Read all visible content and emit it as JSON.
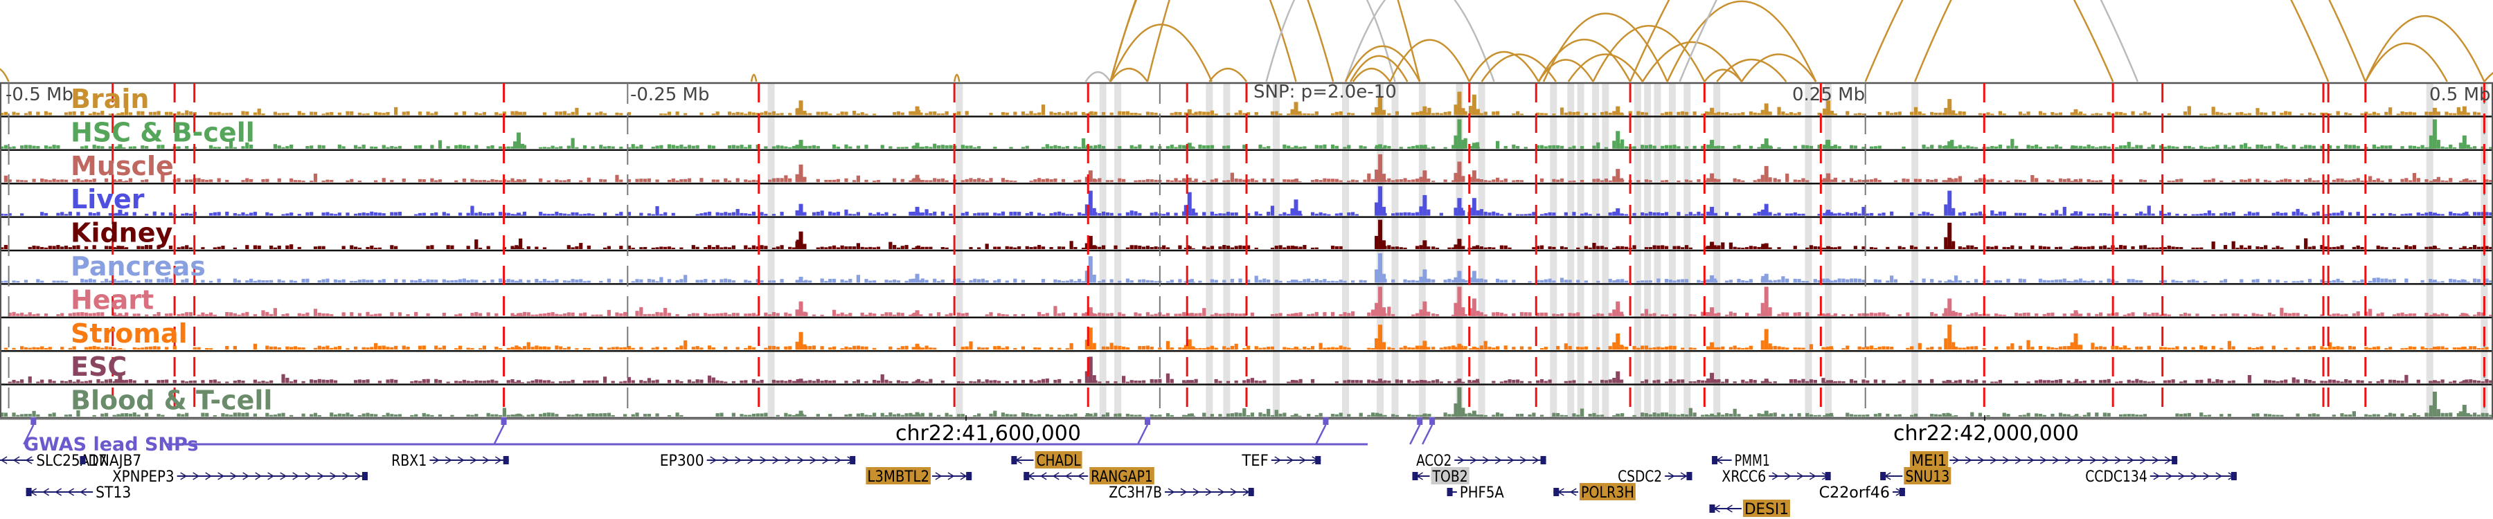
{
  "chart_data": {
    "type": "genome-browser",
    "title": "",
    "region": {
      "chrom": "chr22",
      "start_mb": 41.36,
      "end_mb": 42.36,
      "center_mb": 41.86
    },
    "scale_labels": [
      {
        "text": "-0.5 Mb",
        "offset_mb": -0.5
      },
      {
        "text": "-0.25 Mb",
        "offset_mb": -0.25
      },
      {
        "text": "0.25 Mb",
        "offset_mb": 0.25
      },
      {
        "text": "0.5 Mb",
        "offset_mb": 0.5
      }
    ],
    "snp_annotation": {
      "text": "SNP: p=2.0e-10",
      "offset_mb": -0.035
    },
    "coordinate_labels": [
      {
        "text": "chr22:41,600,000",
        "position_mb": 41.6
      },
      {
        "text": "chr22:42,000,000",
        "position_mb": 42.0
      }
    ],
    "tracks": [
      {
        "name": "Brain",
        "color": "#c8902e"
      },
      {
        "name": "HSC & B-cell",
        "color": "#55a55a"
      },
      {
        "name": "Muscle",
        "color": "#c06860"
      },
      {
        "name": "Liver",
        "color": "#5050e0"
      },
      {
        "name": "Kidney",
        "color": "#6a0000"
      },
      {
        "name": "Pancreas",
        "color": "#88a0e0"
      },
      {
        "name": "Heart",
        "color": "#d87080"
      },
      {
        "name": "Stromal",
        "color": "#f97a10"
      },
      {
        "name": "ESC",
        "color": "#8a4660"
      },
      {
        "name": "Blood & T-cell",
        "color": "#6a8c6a"
      }
    ],
    "peaks_offset_mb": [
      {
        "at": -0.455,
        "heights": [
          0.05,
          0.15,
          0.1,
          0.2,
          0.1,
          0.05,
          0.1,
          0.05,
          0.3,
          0.05
        ]
      },
      {
        "at": -0.294,
        "heights": [
          0.1,
          0.55,
          0.1,
          0.1,
          0.1,
          0.05,
          0.1,
          0.1,
          0.1,
          0.1
        ]
      },
      {
        "at": -0.18,
        "heights": [
          0.5,
          0.3,
          0.6,
          0.4,
          0.6,
          0.2,
          0.5,
          0.6,
          0.15,
          0.2
        ]
      },
      {
        "at": -0.133,
        "heights": [
          0.3,
          0.2,
          0.25,
          0.3,
          0.1,
          0.3,
          0.2,
          0.2,
          0.1,
          0.15
        ]
      },
      {
        "at": -0.063,
        "heights": [
          0.1,
          0.1,
          0.4,
          0.85,
          0.45,
          0.9,
          0.3,
          0.75,
          0.9,
          0.1
        ]
      },
      {
        "at": -0.023,
        "heights": [
          0.2,
          0.2,
          0.15,
          0.8,
          0.1,
          0.1,
          0.1,
          0.35,
          0.1,
          0.1
        ]
      },
      {
        "at": 0.02,
        "heights": [
          0.45,
          0.1,
          0.1,
          0.55,
          0.1,
          0.1,
          0.1,
          0.1,
          0.1,
          0.1
        ]
      },
      {
        "at": 0.054,
        "heights": [
          0.6,
          0.15,
          0.95,
          1.0,
          1.0,
          1.0,
          1.0,
          0.85,
          0.15,
          0.1
        ]
      },
      {
        "at": 0.072,
        "heights": [
          0.3,
          0.1,
          0.4,
          0.7,
          0.3,
          0.45,
          0.5,
          0.3,
          0.1,
          0.1
        ]
      },
      {
        "at": 0.086,
        "heights": [
          0.8,
          1.0,
          0.7,
          0.6,
          0.35,
          0.4,
          1.0,
          0.2,
          0.15,
          1.0
        ]
      },
      {
        "at": 0.092,
        "heights": [
          0.7,
          0.2,
          0.4,
          0.6,
          0.1,
          0.4,
          0.6,
          0.1,
          0.1,
          0.2
        ]
      },
      {
        "at": 0.15,
        "heights": [
          0.3,
          0.6,
          0.45,
          0.25,
          0.1,
          0.1,
          0.5,
          0.55,
          0.4,
          0.1
        ]
      },
      {
        "at": 0.188,
        "heights": [
          0.25,
          0.3,
          0.3,
          0.3,
          0.25,
          0.25,
          0.3,
          0.25,
          0.35,
          0.1
        ]
      },
      {
        "at": 0.21,
        "heights": [
          0.4,
          0.35,
          0.55,
          0.4,
          0.2,
          0.3,
          1.0,
          0.7,
          0.15,
          0.2
        ]
      },
      {
        "at": 0.235,
        "heights": [
          0.5,
          0.3,
          0.3,
          0.2,
          0.1,
          0.1,
          0.1,
          0.1,
          0.1,
          0.1
        ]
      },
      {
        "at": 0.284,
        "heights": [
          0.55,
          0.25,
          0.15,
          0.85,
          0.9,
          0.1,
          0.6,
          0.85,
          0.1,
          0.1
        ]
      },
      {
        "at": 0.335,
        "heights": [
          0.2,
          0.1,
          0.1,
          0.15,
          0.1,
          0.1,
          0.2,
          0.55,
          0.05,
          0.05
        ]
      },
      {
        "at": 0.48,
        "heights": [
          0.25,
          1.0,
          0.1,
          0.1,
          0.1,
          0.1,
          0.1,
          0.1,
          0.1,
          0.85
        ]
      },
      {
        "at": 0.492,
        "heights": [
          0.3,
          0.45,
          0.1,
          0.1,
          0.1,
          0.1,
          0.1,
          0.1,
          0.1,
          0.4
        ]
      }
    ],
    "highlighted_snps_offset_mb": [
      -0.458,
      -0.433,
      -0.425,
      -0.3,
      -0.197,
      -0.118,
      -0.064,
      -0.024,
      0.0,
      0.09,
      0.117,
      0.155,
      0.185,
      0.232,
      0.298,
      0.35,
      0.37,
      0.435,
      0.437,
      0.452,
      0.5
    ],
    "highlight_bands_offset_mb": [
      -0.192,
      -0.116,
      -0.058,
      -0.052,
      -0.015,
      -0.008,
      0.012,
      0.04,
      0.054,
      0.06,
      0.071,
      0.086,
      0.095,
      0.124,
      0.131,
      0.135,
      0.141,
      0.145,
      0.158,
      0.162,
      0.166,
      0.172,
      0.178,
      0.19,
      0.227,
      0.235,
      0.27,
      0.478,
      0.5
    ],
    "arcs": [
      {
        "from": -0.5,
        "to": -0.51,
        "color": "#c8902e",
        "height": 0.5
      },
      {
        "from": -0.2,
        "to": -0.198,
        "color": "#c8902e",
        "height": 0.02
      },
      {
        "from": -0.118,
        "to": -0.116,
        "color": "#c8902e",
        "height": 0.02
      },
      {
        "from": -0.065,
        "to": -0.055,
        "color": "#bbbbbb",
        "height": 0.2
      },
      {
        "from": -0.055,
        "to": -0.04,
        "color": "#c8902e",
        "height": 0.3
      },
      {
        "from": -0.055,
        "to": -0.014,
        "color": "#c8902e",
        "height": 0.9
      },
      {
        "from": -0.055,
        "to": 0.02,
        "color": "#c8902e",
        "height": 1.6
      },
      {
        "from": -0.055,
        "to": 0.035,
        "color": "#c8902e",
        "height": 1.6
      },
      {
        "from": -0.04,
        "to": 0.07,
        "color": "#c8902e",
        "height": 1.8
      },
      {
        "from": -0.015,
        "to": 0.0,
        "color": "#c8902e",
        "height": 0.3
      },
      {
        "from": 0.008,
        "to": 0.06,
        "color": "#bbbbbb",
        "height": 1.6
      },
      {
        "from": 0.04,
        "to": 0.1,
        "color": "#bbbbbb",
        "height": 1.2
      },
      {
        "from": 0.04,
        "to": 0.07,
        "color": "#c8902e",
        "height": 0.7
      },
      {
        "from": 0.042,
        "to": 0.065,
        "color": "#c8902e",
        "height": 0.6
      },
      {
        "from": 0.043,
        "to": 0.058,
        "color": "#c8902e",
        "height": 0.3
      },
      {
        "from": 0.058,
        "to": 0.09,
        "color": "#c8902e",
        "height": 0.8
      },
      {
        "from": 0.09,
        "to": 0.118,
        "color": "#c8902e",
        "height": 0.6
      },
      {
        "from": 0.095,
        "to": 0.125,
        "color": "#c8902e",
        "height": 0.5
      },
      {
        "from": 0.118,
        "to": 0.14,
        "color": "#c8902e",
        "height": 0.5
      },
      {
        "from": 0.118,
        "to": 0.155,
        "color": "#c8902e",
        "height": 0.7
      },
      {
        "from": 0.12,
        "to": 0.17,
        "color": "#c8902e",
        "height": 0.9
      },
      {
        "from": 0.13,
        "to": 0.16,
        "color": "#c8902e",
        "height": 0.5
      },
      {
        "from": 0.14,
        "to": 0.185,
        "color": "#c8902e",
        "height": 0.8
      },
      {
        "from": 0.16,
        "to": 0.2,
        "color": "#c8902e",
        "height": 0.6
      },
      {
        "from": 0.17,
        "to": 0.23,
        "color": "#c8902e",
        "height": 0.9
      },
      {
        "from": 0.185,
        "to": 0.2,
        "color": "#c8902e",
        "height": 0.25
      },
      {
        "from": 0.19,
        "to": 0.218,
        "color": "#c8902e",
        "height": 0.4
      },
      {
        "from": 0.2,
        "to": 0.23,
        "color": "#c8902e",
        "height": 0.5
      },
      {
        "from": 0.155,
        "to": 0.35,
        "color": "#c8902e",
        "height": 2.5
      },
      {
        "from": 0.175,
        "to": 0.36,
        "color": "#bbbbbb",
        "height": 2.5
      },
      {
        "from": 0.25,
        "to": 0.437,
        "color": "#c8902e",
        "height": 2.5
      },
      {
        "from": 0.27,
        "to": 0.452,
        "color": "#c8902e",
        "height": 2.5
      },
      {
        "from": 0.452,
        "to": 0.5,
        "color": "#c8902e",
        "height": 0.9
      },
      {
        "from": 0.452,
        "to": 0.485,
        "color": "#c8902e",
        "height": 0.7
      },
      {
        "from": 0.5,
        "to": 0.52,
        "color": "#c8902e",
        "height": 0.3
      }
    ],
    "gwas_lead_snps": {
      "label": "GWAS lead SNPs",
      "color": "#6a5acd",
      "positions_offset_mb": [
        -0.49,
        -0.3,
        -0.04,
        0.032,
        0.07,
        0.075
      ]
    },
    "genes": [
      {
        "name": "SLC25A17",
        "start": -0.52,
        "end": -0.49,
        "strand": "-",
        "row": 0,
        "label_side": "right",
        "highlight": null
      },
      {
        "name": "DNAJB7",
        "start": -0.47,
        "end": -0.469,
        "strand": "+",
        "row": 0,
        "label_side": "right",
        "highlight": null
      },
      {
        "name": "RBX1",
        "start": -0.33,
        "end": -0.298,
        "strand": "+",
        "row": 0,
        "label_side": "left",
        "highlight": null
      },
      {
        "name": "XPNPEP3",
        "start": -0.432,
        "end": -0.355,
        "strand": "+",
        "row": 1,
        "label_side": "left",
        "highlight": null
      },
      {
        "name": "ST13",
        "start": -0.493,
        "end": -0.466,
        "strand": "-",
        "row": 2,
        "label_side": "right",
        "highlight": null
      },
      {
        "name": "EP300",
        "start": -0.218,
        "end": -0.158,
        "strand": "+",
        "row": 0,
        "label_side": "left",
        "highlight": null
      },
      {
        "name": "L3MBTL2",
        "start": -0.127,
        "end": -0.111,
        "strand": "+",
        "row": 1,
        "label_side": "left",
        "highlight": "#c8902e"
      },
      {
        "name": "CHADL",
        "start": -0.095,
        "end": -0.086,
        "strand": "-",
        "row": 0,
        "label_side": "right",
        "highlight": "#c8902e"
      },
      {
        "name": "RANGAP1",
        "start": -0.09,
        "end": -0.064,
        "strand": "-",
        "row": 1,
        "label_side": "right",
        "highlight": "#c8902e"
      },
      {
        "name": "ZC3H7B",
        "start": -0.033,
        "end": 0.003,
        "strand": "+",
        "row": 2,
        "label_side": "left",
        "highlight": null
      },
      {
        "name": "TEF",
        "start": 0.01,
        "end": 0.03,
        "strand": "+",
        "row": 0,
        "label_side": "left",
        "highlight": null
      },
      {
        "name": "ACO2",
        "start": 0.084,
        "end": 0.121,
        "strand": "+",
        "row": 0,
        "label_side": "left",
        "highlight": null
      },
      {
        "name": "TOB2",
        "start": 0.067,
        "end": 0.074,
        "strand": "-",
        "row": 1,
        "label_side": "right",
        "highlight": "#cccccc"
      },
      {
        "name": "PHF5A",
        "start": 0.081,
        "end": 0.085,
        "strand": "-",
        "row": 2,
        "label_side": "right",
        "highlight": null
      },
      {
        "name": "CSDC2",
        "start": 0.169,
        "end": 0.18,
        "strand": "+",
        "row": 1,
        "label_side": "left",
        "highlight": null
      },
      {
        "name": "POLR3H",
        "start": 0.124,
        "end": 0.134,
        "strand": "-",
        "row": 2,
        "label_side": "right",
        "highlight": "#c8902e"
      },
      {
        "name": "PMM1",
        "start": 0.188,
        "end": 0.196,
        "strand": "-",
        "row": 0,
        "label_side": "right",
        "highlight": null
      },
      {
        "name": "XRCC6",
        "start": 0.211,
        "end": 0.236,
        "strand": "+",
        "row": 1,
        "label_side": "left",
        "highlight": null
      },
      {
        "name": "DESI1",
        "start": 0.187,
        "end": 0.2,
        "strand": "-",
        "row": 3,
        "label_side": "right",
        "highlight": "#c8902e"
      },
      {
        "name": "MEI1",
        "start": 0.284,
        "end": 0.376,
        "strand": "+",
        "row": 0,
        "label_side": "left",
        "highlight": "#c8902e"
      },
      {
        "name": "SNU13",
        "start": 0.256,
        "end": 0.265,
        "strand": "-",
        "row": 1,
        "label_side": "right",
        "highlight": "#c8902e"
      },
      {
        "name": "C22orf46",
        "start": 0.261,
        "end": 0.266,
        "strand": "+",
        "row": 2,
        "label_side": "left",
        "highlight": null
      },
      {
        "name": "CCDC134",
        "start": 0.365,
        "end": 0.4,
        "strand": "+",
        "row": 1,
        "label_side": "left",
        "highlight": null
      }
    ]
  }
}
